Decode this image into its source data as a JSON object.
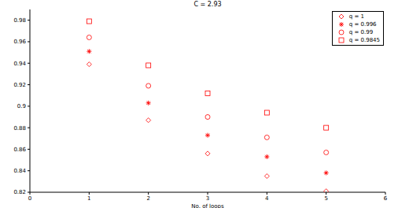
{
  "chart_data": {
    "type": "scatter",
    "title": "C = 2.93",
    "x_label": "No. of loops",
    "x": [
      1,
      2,
      3,
      4,
      5
    ],
    "series": [
      {
        "name": "q = 1",
        "color": "#ff0000",
        "marker": "diamond",
        "values": [
          0.939,
          0.887,
          0.856,
          0.835,
          0.821
        ]
      },
      {
        "name": "q = 0.996",
        "color": "#ff0000",
        "marker": "asterisk",
        "values": [
          0.951,
          0.903,
          0.873,
          0.853,
          0.838
        ]
      },
      {
        "name": "q = 0.99",
        "color": "#ff0000",
        "marker": "circle",
        "values": [
          0.964,
          0.919,
          0.89,
          0.871,
          0.857
        ]
      },
      {
        "name": "q = 0.9845",
        "color": "#ff0000",
        "marker": "square",
        "values": [
          0.979,
          0.938,
          0.912,
          0.894,
          0.88
        ]
      }
    ],
    "xlim": [
      0,
      6
    ],
    "xticks": [
      0,
      1,
      2,
      3,
      4,
      5,
      6
    ],
    "ylim": [
      0.82,
      0.99
    ],
    "yticks": [
      0.82,
      0.84,
      0.86,
      0.88,
      0.9,
      0.92,
      0.94,
      0.96,
      0.98
    ],
    "grid": false,
    "legend": "top-right"
  }
}
